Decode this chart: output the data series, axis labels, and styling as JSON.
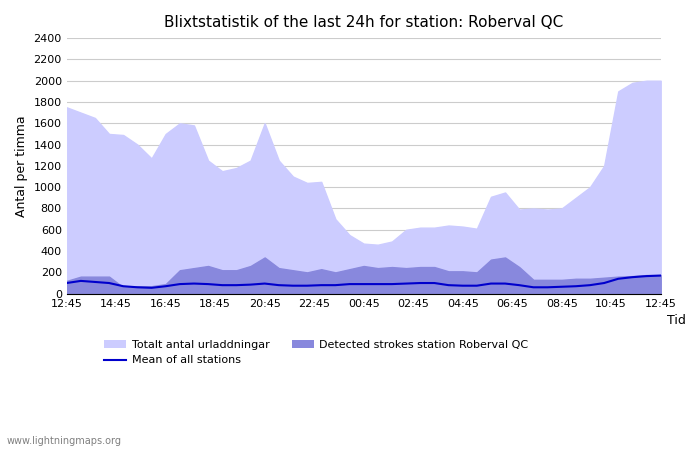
{
  "title": "Blixtstatistik of the last 24h for station: Roberval QC",
  "ylabel": "Antal per timma",
  "xlabel": "Tid",
  "watermark": "www.lightningmaps.org",
  "ylim": [
    0,
    2400
  ],
  "yticks": [
    0,
    200,
    400,
    600,
    800,
    1000,
    1200,
    1400,
    1600,
    1800,
    2000,
    2200,
    2400
  ],
  "xtick_labels": [
    "12:45",
    "14:45",
    "16:45",
    "18:45",
    "20:45",
    "22:45",
    "00:45",
    "02:45",
    "04:45",
    "06:45",
    "08:45",
    "10:45",
    "12:45"
  ],
  "legend_labels": [
    "Totalt antal urladdningar",
    "Detected strokes station Roberval QC",
    "Mean of all stations"
  ],
  "color_total": "#ccccff",
  "color_detected": "#8888dd",
  "color_mean": "#0000cc",
  "total_values": [
    1750,
    1700,
    1650,
    1500,
    1490,
    1400,
    1270,
    1500,
    1600,
    1580,
    1250,
    1150,
    1180,
    1250,
    1600,
    1250,
    1100,
    1040,
    1050,
    700,
    550,
    470,
    460,
    490,
    600,
    620,
    620,
    640,
    630,
    610,
    910,
    950,
    790,
    800,
    790,
    800,
    900,
    1000,
    1200,
    1900,
    1980,
    2000,
    2000
  ],
  "detected_values": [
    120,
    160,
    160,
    160,
    60,
    70,
    70,
    90,
    220,
    240,
    260,
    220,
    220,
    260,
    340,
    240,
    220,
    200,
    230,
    200,
    230,
    260,
    240,
    250,
    240,
    250,
    250,
    210,
    210,
    200,
    320,
    340,
    250,
    130,
    130,
    130,
    140,
    140,
    150,
    160,
    165,
    175,
    175
  ],
  "mean_values": [
    100,
    120,
    110,
    100,
    70,
    60,
    55,
    70,
    90,
    95,
    90,
    80,
    80,
    85,
    95,
    80,
    75,
    75,
    80,
    80,
    90,
    90,
    90,
    90,
    95,
    100,
    100,
    80,
    75,
    75,
    95,
    95,
    80,
    60,
    60,
    65,
    70,
    80,
    100,
    140,
    155,
    165,
    170
  ]
}
